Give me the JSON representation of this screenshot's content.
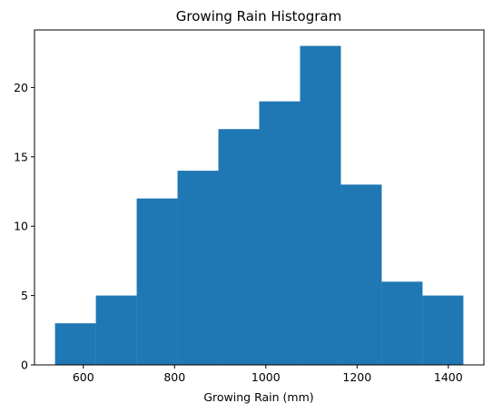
{
  "chart_data": {
    "type": "bar",
    "subtype": "histogram",
    "title": "Growing Rain Histogram",
    "xlabel": "Growing Rain (mm)",
    "ylabel": "",
    "bin_edges": [
      538,
      627.5,
      717,
      806.5,
      896,
      985.5,
      1075,
      1164.5,
      1254,
      1343.5,
      1433
    ],
    "values": [
      3,
      5,
      12,
      14,
      17,
      19,
      23,
      13,
      6,
      5
    ],
    "xlim": [
      493,
      1478
    ],
    "ylim": [
      0,
      24.15
    ],
    "xticks": [
      600,
      800,
      1000,
      1200,
      1400
    ],
    "yticks": [
      0,
      5,
      10,
      15,
      20
    ],
    "grid": false,
    "colors": {
      "bar": "#1f77b4",
      "axis": "#000000",
      "background": "#ffffff"
    }
  }
}
